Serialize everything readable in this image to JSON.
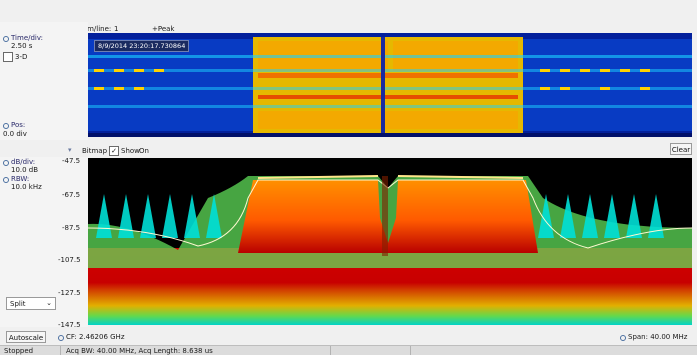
{
  "header": {
    "spectrum_line_label": "Spectrum/line:",
    "spectrum_line_value": "1",
    "peak_label": "+Peak"
  },
  "waterfall": {
    "time_div_label": "Time/div:",
    "time_div_value": "2.50 s",
    "three_d_label": "3-D",
    "three_d_checked": false,
    "pos_label": "Pos:",
    "pos_value": "0.0 div",
    "timestamp": "8/9/2014 23:20:17.730864"
  },
  "spectrum_controls": {
    "bitmap_label": "Bitmap",
    "show_label": "Show",
    "show_checked": true,
    "on_label": "On",
    "clear_label": "Clear"
  },
  "spectrum": {
    "db_div_label": "dB/div:",
    "db_div_value": "10.0 dB",
    "rbw_label": "RBW:",
    "rbw_value": "10.0 kHz",
    "y_ticks": [
      "-47.5",
      "-67.5",
      "-87.5",
      "-107.5",
      "-127.5",
      "-147.5"
    ],
    "view_select": "Split",
    "autoscale_label": "Autoscale",
    "cf_label": "CF: 2.46206 GHz",
    "span_label": "Span: 40.00 MHz"
  },
  "status": {
    "state": "Stopped",
    "acq": "Acq BW: 40.00 MHz, Acq Length: 8.638 us"
  },
  "colors": {
    "waterfall_bg": "#02198a",
    "spectrum_bg": "#000000",
    "hot": "#c80000",
    "warm": "#ff8a00",
    "trace": "#fff8d0"
  }
}
